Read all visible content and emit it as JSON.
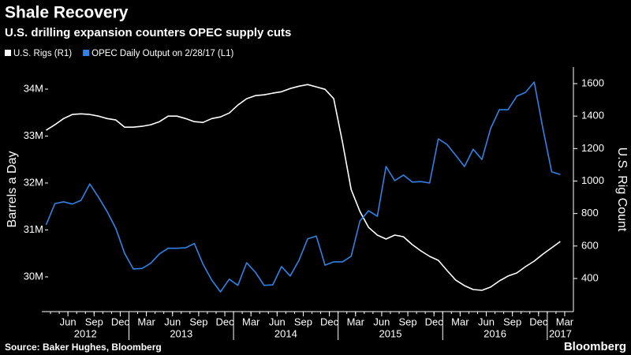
{
  "chart_data": {
    "type": "line",
    "title": "Shale Recovery",
    "subtitle": "U.S. drilling expansion counters OPEC supply cuts",
    "y_label": "Barrels a Day",
    "y2_label": "U.S. Rig Count",
    "source": "Source: Baker Hughes, Bloomberg",
    "brand": "Bloomberg",
    "grid": false,
    "x": [
      "2012-03",
      "2012-04",
      "2012-05",
      "2012-06",
      "2012-07",
      "2012-08",
      "2012-09",
      "2012-10",
      "2012-11",
      "2012-12",
      "2013-01",
      "2013-02",
      "2013-03",
      "2013-04",
      "2013-05",
      "2013-06",
      "2013-07",
      "2013-08",
      "2013-09",
      "2013-10",
      "2013-11",
      "2013-12",
      "2014-01",
      "2014-02",
      "2014-03",
      "2014-04",
      "2014-05",
      "2014-06",
      "2014-07",
      "2014-08",
      "2014-09",
      "2014-10",
      "2014-11",
      "2014-12",
      "2015-01",
      "2015-02",
      "2015-03",
      "2015-04",
      "2015-05",
      "2015-06",
      "2015-07",
      "2015-08",
      "2015-09",
      "2015-10",
      "2015-11",
      "2015-12",
      "2016-01",
      "2016-02",
      "2016-03",
      "2016-04",
      "2016-05",
      "2016-06",
      "2016-07",
      "2016-08",
      "2016-09",
      "2016-10",
      "2016-11",
      "2016-12",
      "2017-01",
      "2017-02"
    ],
    "xlim": [
      "2012-03",
      "2017-04"
    ],
    "xticks": [
      {
        "value": "2012-06",
        "label": "Jun"
      },
      {
        "value": "2012-09",
        "label": "Sep"
      },
      {
        "value": "2012-12",
        "label": "Dec"
      },
      {
        "value": "2013-03",
        "label": "Mar"
      },
      {
        "value": "2013-06",
        "label": "Jun"
      },
      {
        "value": "2013-09",
        "label": "Sep"
      },
      {
        "value": "2013-12",
        "label": "Dec"
      },
      {
        "value": "2014-03",
        "label": "Mar"
      },
      {
        "value": "2014-06",
        "label": "Jun"
      },
      {
        "value": "2014-09",
        "label": "Sep"
      },
      {
        "value": "2014-12",
        "label": "Dec"
      },
      {
        "value": "2015-03",
        "label": "Mar"
      },
      {
        "value": "2015-06",
        "label": "Jun"
      },
      {
        "value": "2015-09",
        "label": "Sep"
      },
      {
        "value": "2015-12",
        "label": "Dec"
      },
      {
        "value": "2016-03",
        "label": "Mar"
      },
      {
        "value": "2016-06",
        "label": "Jun"
      },
      {
        "value": "2016-09",
        "label": "Sep"
      },
      {
        "value": "2016-12",
        "label": "Dec"
      },
      {
        "value": "2017-03",
        "label": "Mar"
      }
    ],
    "years": [
      "2012",
      "2013",
      "2014",
      "2015",
      "2016",
      "2017"
    ],
    "ylim": [
      29.26,
      34.47
    ],
    "yticks": [
      {
        "value": 30,
        "label": "30M"
      },
      {
        "value": 31,
        "label": "31M"
      },
      {
        "value": 32,
        "label": "32M"
      },
      {
        "value": 33,
        "label": "33M"
      },
      {
        "value": 34,
        "label": "34M"
      }
    ],
    "y2lim": [
      196,
      1702
    ],
    "y2ticks": [
      400,
      600,
      800,
      1000,
      1200,
      1400,
      1600
    ],
    "series": [
      {
        "name": "U.S. Rigs (R1)",
        "color": "#ffffff",
        "axis": "y2",
        "values": [
          1313,
          1347,
          1385,
          1410,
          1414,
          1410,
          1400,
          1385,
          1376,
          1332,
          1332,
          1337,
          1347,
          1366,
          1400,
          1400,
          1385,
          1366,
          1361,
          1385,
          1395,
          1419,
          1468,
          1507,
          1526,
          1531,
          1541,
          1550,
          1570,
          1584,
          1594,
          1580,
          1565,
          1507,
          1240,
          948,
          813,
          715,
          667,
          643,
          667,
          657,
          609,
          570,
          536,
          512,
          449,
          390,
          356,
          332,
          327,
          347,
          385,
          415,
          434,
          473,
          507,
          550,
          589,
          628
        ]
      },
      {
        "name": "OPEC Daily Output on 2/28/17 (L1)",
        "color": "#2f83e4",
        "axis": "y",
        "values": [
          31.11,
          31.56,
          31.6,
          31.55,
          31.63,
          31.98,
          31.7,
          31.39,
          31.03,
          30.5,
          30.17,
          30.18,
          30.29,
          30.49,
          30.61,
          30.61,
          30.62,
          30.71,
          30.27,
          29.93,
          29.68,
          29.95,
          29.82,
          30.3,
          30.1,
          29.82,
          29.83,
          30.22,
          30.02,
          30.35,
          30.81,
          30.87,
          30.25,
          30.32,
          30.32,
          30.44,
          31.19,
          31.41,
          31.29,
          32.35,
          32.05,
          32.17,
          32.02,
          32.03,
          32.0,
          32.94,
          32.82,
          32.59,
          32.35,
          32.72,
          32.5,
          33.16,
          33.56,
          33.56,
          33.85,
          33.93,
          34.15,
          33.16,
          32.24,
          32.18
        ]
      }
    ]
  }
}
